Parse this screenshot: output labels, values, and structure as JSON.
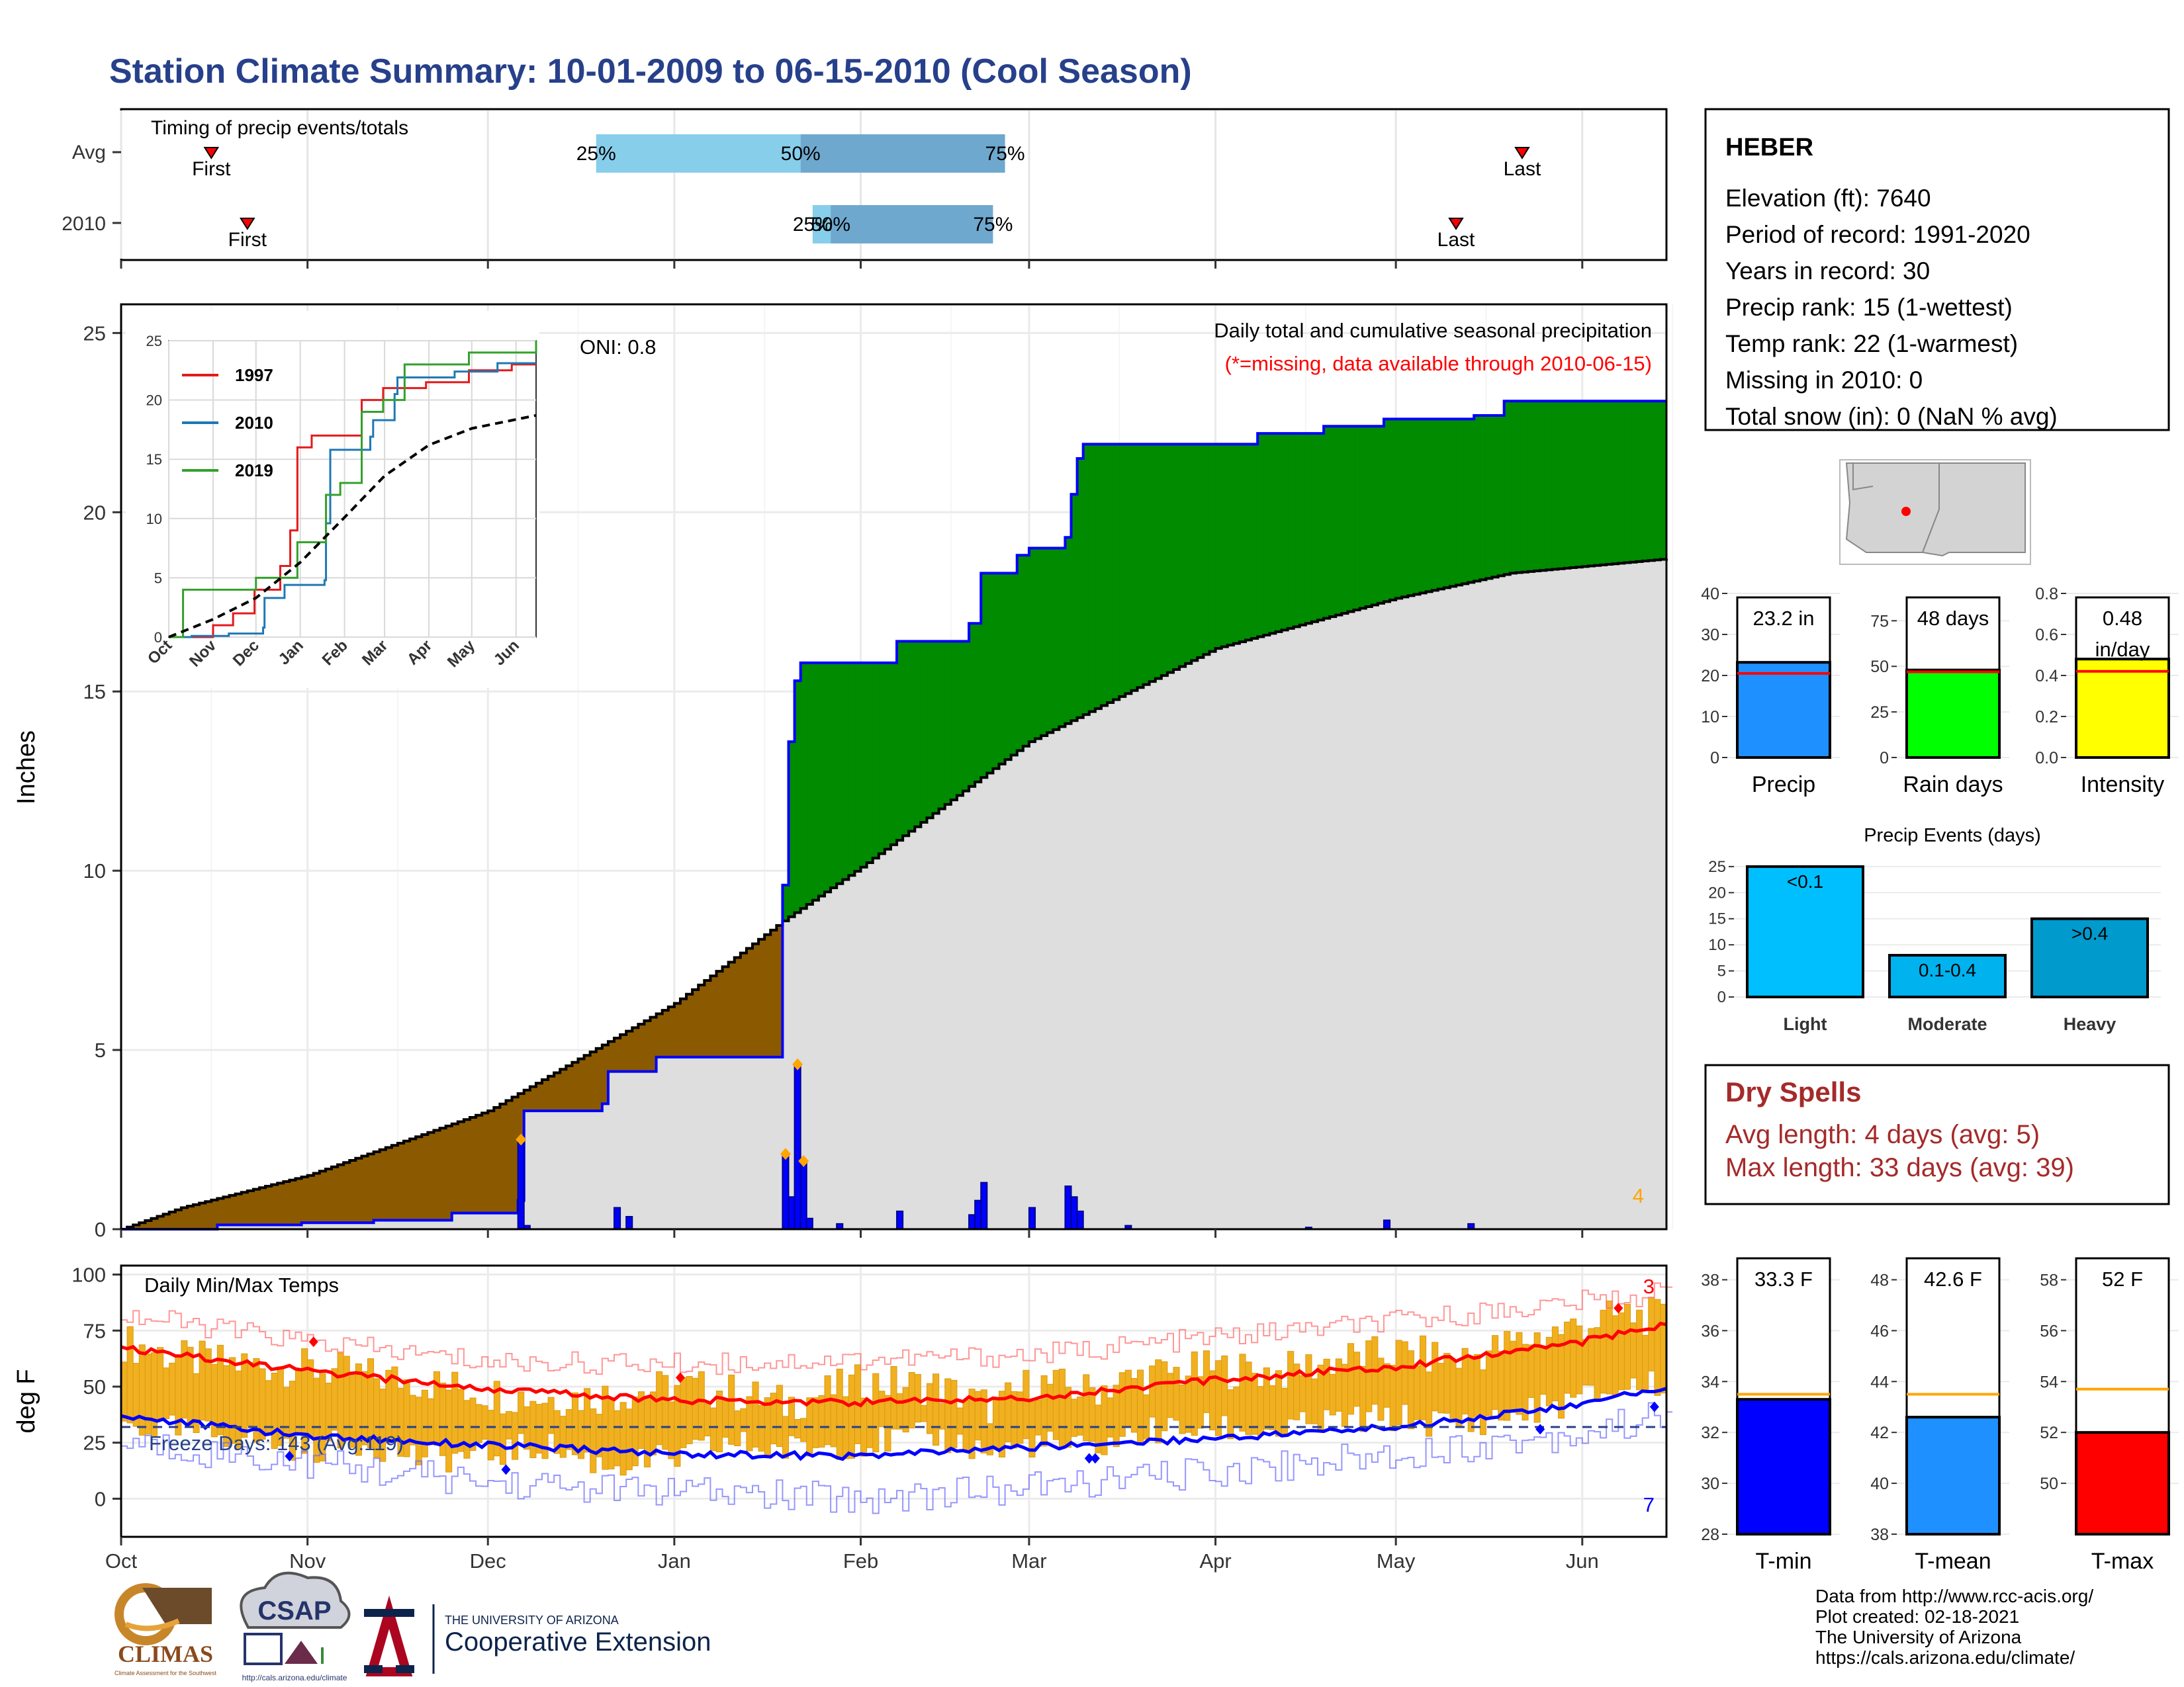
{
  "title": "Station Climate Summary: 10-01-2009 to 06-15-2010 (Cool Season)",
  "timing": {
    "label": "Timing of precip events/totals",
    "rows": [
      {
        "name": "Avg",
        "first_day": 15,
        "last_day": 233,
        "p25": 79,
        "p50": 113,
        "p75": 147,
        "first_label": "First",
        "last_label": "Last",
        "p25_label": "25%",
        "p50_label": "50%",
        "p75_label": "75%"
      },
      {
        "name": "2010",
        "first_day": 21,
        "last_day": 222,
        "p25": 115,
        "p50": 118,
        "p75": 145,
        "first_label": "First",
        "last_label": "Last",
        "p25_label": "25%",
        "p50_label": "50%",
        "p75_label": "75%"
      }
    ]
  },
  "chart_data": [
    {
      "type": "area",
      "name": "precipitation",
      "ylabel": "Inches",
      "ylim": [
        0,
        25
      ],
      "yticks": [
        0,
        5,
        10,
        15,
        20,
        25
      ],
      "xlim_days": [
        0,
        257
      ],
      "month_ticks": [
        {
          "label": "Oct",
          "day": 0
        },
        {
          "label": "Nov",
          "day": 31
        },
        {
          "label": "Dec",
          "day": 61
        },
        {
          "label": "Jan",
          "day": 92
        },
        {
          "label": "Feb",
          "day": 123
        },
        {
          "label": "Mar",
          "day": 151
        },
        {
          "label": "Apr",
          "day": 182
        },
        {
          "label": "May",
          "day": 212
        },
        {
          "label": "Jun",
          "day": 243
        }
      ],
      "legend_title": "Daily total and cumulative seasonal precipitation",
      "legend_note": "(*=missing, data available through 2010-06-15)",
      "oni": "ONI: 0.8",
      "corner_count": "4",
      "avg_cumulative": [
        [
          0,
          0
        ],
        [
          10,
          0.6
        ],
        [
          31,
          1.5
        ],
        [
          61,
          3.3
        ],
        [
          92,
          6.3
        ],
        [
          110,
          8.6
        ],
        [
          123,
          10.1
        ],
        [
          151,
          13.6
        ],
        [
          182,
          16.2
        ],
        [
          212,
          17.6
        ],
        [
          231,
          18.3
        ],
        [
          257,
          18.7
        ]
      ],
      "cumulative_2010": [
        [
          0,
          0
        ],
        [
          16,
          0.12
        ],
        [
          30,
          0.18
        ],
        [
          42,
          0.25
        ],
        [
          55,
          0.45
        ],
        [
          66,
          0.8
        ],
        [
          67,
          3.3
        ],
        [
          80,
          3.5
        ],
        [
          81,
          4.4
        ],
        [
          89,
          4.8
        ],
        [
          109,
          4.8
        ],
        [
          110,
          9.6
        ],
        [
          111,
          13.6
        ],
        [
          112,
          15.3
        ],
        [
          113,
          15.8
        ],
        [
          120,
          15.8
        ],
        [
          129,
          16.4
        ],
        [
          134,
          16.4
        ],
        [
          141,
          16.9
        ],
        [
          143,
          18.3
        ],
        [
          149,
          18.8
        ],
        [
          151,
          19.0
        ],
        [
          157,
          19.3
        ],
        [
          158,
          20.5
        ],
        [
          159,
          21.5
        ],
        [
          160,
          21.9
        ],
        [
          182,
          21.9
        ],
        [
          189,
          22.2
        ],
        [
          200,
          22.4
        ],
        [
          210,
          22.6
        ],
        [
          225,
          22.7
        ],
        [
          230,
          23.1
        ],
        [
          257,
          23.1
        ]
      ],
      "daily_2010": [
        [
          66,
          2.5
        ],
        [
          67,
          0.1
        ],
        [
          82,
          0.6
        ],
        [
          84,
          0.35
        ],
        [
          110,
          2.1
        ],
        [
          111,
          0.9
        ],
        [
          112,
          4.6
        ],
        [
          113,
          1.9
        ],
        [
          114,
          0.3
        ],
        [
          119,
          0.15
        ],
        [
          129,
          0.5
        ],
        [
          141,
          0.4
        ],
        [
          142,
          0.8
        ],
        [
          143,
          1.3
        ],
        [
          151,
          0.6
        ],
        [
          157,
          1.2
        ],
        [
          158,
          0.9
        ],
        [
          159,
          0.5
        ],
        [
          167,
          0.1
        ],
        [
          197,
          0.05
        ],
        [
          210,
          0.25
        ],
        [
          224,
          0.15
        ]
      ],
      "daily_extreme_markers": [
        [
          66,
          2.5
        ],
        [
          110,
          2.1
        ],
        [
          112,
          4.6
        ],
        [
          113,
          1.9
        ]
      ]
    },
    {
      "type": "line",
      "name": "inset-cumulative",
      "xticks": [
        "Oct",
        "Nov",
        "Dec",
        "Jan",
        "Feb",
        "Mar",
        "Apr",
        "May",
        "Jun"
      ],
      "ylim": [
        0,
        25
      ],
      "yticks": [
        0,
        5,
        10,
        15,
        20,
        25
      ],
      "series": [
        {
          "name": "1997",
          "color": "#e31a1c",
          "values": [
            [
              0,
              0
            ],
            [
              30,
              0
            ],
            [
              31,
              1
            ],
            [
              45,
              2
            ],
            [
              60,
              4
            ],
            [
              70,
              4
            ],
            [
              78,
              6
            ],
            [
              85,
              9
            ],
            [
              90,
              16
            ],
            [
              100,
              17
            ],
            [
              110,
              17
            ],
            [
              125,
              17
            ],
            [
              135,
              20
            ],
            [
              150,
              21
            ],
            [
              180,
              21.5
            ],
            [
              210,
              22.5
            ],
            [
              240,
              23
            ],
            [
              257,
              23
            ]
          ]
        },
        {
          "name": "2010",
          "color": "#1f78b4",
          "values": [
            [
              0,
              0
            ],
            [
              16,
              0.1
            ],
            [
              42,
              0.3
            ],
            [
              66,
              0.8
            ],
            [
              67,
              3.3
            ],
            [
              81,
              4.4
            ],
            [
              109,
              4.8
            ],
            [
              110,
              9.6
            ],
            [
              113,
              15.8
            ],
            [
              141,
              16.9
            ],
            [
              143,
              18.3
            ],
            [
              158,
              20.5
            ],
            [
              160,
              21.9
            ],
            [
              200,
              22.4
            ],
            [
              230,
              23.1
            ],
            [
              257,
              23.1
            ]
          ]
        },
        {
          "name": "2019",
          "color": "#33a02c",
          "values": [
            [
              0,
              0
            ],
            [
              10,
              4
            ],
            [
              31,
              4
            ],
            [
              61,
              5
            ],
            [
              90,
              8
            ],
            [
              110,
              12
            ],
            [
              120,
              13
            ],
            [
              135,
              19
            ],
            [
              150,
              20
            ],
            [
              165,
              23
            ],
            [
              182,
              23
            ],
            [
              210,
              24
            ],
            [
              240,
              24
            ],
            [
              257,
              25
            ]
          ]
        },
        {
          "name": "",
          "color": "#000000",
          "dashed": true,
          "values": [
            [
              0,
              0
            ],
            [
              31,
              1.5
            ],
            [
              61,
              3.3
            ],
            [
              92,
              6.3
            ],
            [
              123,
              10.1
            ],
            [
              151,
              13.6
            ],
            [
              182,
              16.2
            ],
            [
              212,
              17.6
            ],
            [
              257,
              18.7
            ]
          ]
        }
      ]
    },
    {
      "type": "line",
      "name": "temperature",
      "ylabel": "deg F",
      "title": "Daily Min/Max Temps",
      "ylim": [
        -15,
        100
      ],
      "yticks": [
        0,
        25,
        50,
        75,
        100
      ],
      "freeze_label": "Freeze Days: 143 (Avg:119)",
      "freeze_line": 32,
      "count_max": "3",
      "count_min": "7",
      "avg_max": [
        [
          0,
          67
        ],
        [
          31,
          57
        ],
        [
          61,
          49
        ],
        [
          92,
          44
        ],
        [
          123,
          43
        ],
        [
          151,
          45
        ],
        [
          182,
          53
        ],
        [
          212,
          59
        ],
        [
          243,
          70
        ],
        [
          257,
          78
        ]
      ],
      "avg_min": [
        [
          0,
          37
        ],
        [
          31,
          28
        ],
        [
          61,
          24
        ],
        [
          92,
          20
        ],
        [
          123,
          19
        ],
        [
          151,
          23
        ],
        [
          182,
          27
        ],
        [
          212,
          32
        ],
        [
          243,
          42
        ],
        [
          257,
          50
        ]
      ],
      "record_max_line": [
        [
          0,
          82
        ],
        [
          31,
          70
        ],
        [
          61,
          61
        ],
        [
          92,
          60
        ],
        [
          123,
          62
        ],
        [
          151,
          64
        ],
        [
          182,
          72
        ],
        [
          212,
          79
        ],
        [
          243,
          88
        ],
        [
          257,
          92
        ]
      ],
      "record_min_line": [
        [
          0,
          25
        ],
        [
          31,
          16
        ],
        [
          61,
          7
        ],
        [
          92,
          3
        ],
        [
          123,
          0
        ],
        [
          151,
          5
        ],
        [
          182,
          12
        ],
        [
          212,
          20
        ],
        [
          243,
          29
        ],
        [
          257,
          38
        ]
      ],
      "daily_max_2010": [
        [
          0,
          70
        ],
        [
          10,
          62
        ],
        [
          20,
          60
        ],
        [
          31,
          58
        ],
        [
          40,
          55
        ],
        [
          50,
          52
        ],
        [
          61,
          47
        ],
        [
          70,
          45
        ],
        [
          80,
          46
        ],
        [
          92,
          50
        ],
        [
          100,
          48
        ],
        [
          110,
          42
        ],
        [
          123,
          52
        ],
        [
          135,
          50
        ],
        [
          145,
          40
        ],
        [
          151,
          52
        ],
        [
          160,
          48
        ],
        [
          170,
          55
        ],
        [
          182,
          58
        ],
        [
          192,
          56
        ],
        [
          202,
          62
        ],
        [
          212,
          65
        ],
        [
          222,
          62
        ],
        [
          232,
          70
        ],
        [
          243,
          78
        ],
        [
          250,
          82
        ],
        [
          257,
          80
        ]
      ],
      "daily_min_2010": [
        [
          0,
          33
        ],
        [
          10,
          30
        ],
        [
          20,
          28
        ],
        [
          31,
          22
        ],
        [
          40,
          26
        ],
        [
          50,
          18
        ],
        [
          61,
          20
        ],
        [
          70,
          24
        ],
        [
          80,
          15
        ],
        [
          92,
          18
        ],
        [
          100,
          25
        ],
        [
          110,
          22
        ],
        [
          123,
          25
        ],
        [
          135,
          28
        ],
        [
          145,
          20
        ],
        [
          151,
          25
        ],
        [
          160,
          22
        ],
        [
          170,
          30
        ],
        [
          182,
          32
        ],
        [
          192,
          30
        ],
        [
          202,
          35
        ],
        [
          212,
          36
        ],
        [
          222,
          33
        ],
        [
          232,
          38
        ],
        [
          243,
          45
        ],
        [
          250,
          50
        ],
        [
          257,
          52
        ]
      ],
      "record_high_markers": [
        [
          32,
          70
        ],
        [
          93,
          54
        ],
        [
          249,
          85
        ]
      ],
      "record_low_markers": [
        [
          28,
          19
        ],
        [
          64,
          13
        ],
        [
          161,
          18
        ],
        [
          162,
          18
        ],
        [
          236,
          31
        ],
        [
          255,
          41
        ]
      ]
    },
    {
      "type": "bar",
      "name": "precip-total",
      "categories": [
        "Precip"
      ],
      "values": [
        23.2
      ],
      "avg": 20.5,
      "ylim": [
        0,
        40
      ],
      "yticks": [
        0,
        10,
        20,
        30,
        40
      ],
      "box_label": "23.2 in",
      "color": "#1e90ff"
    },
    {
      "type": "bar",
      "name": "rain-days",
      "categories": [
        "Rain days"
      ],
      "values": [
        48
      ],
      "avg": 47,
      "ylim": [
        0,
        90
      ],
      "yticks": [
        0,
        25,
        50,
        75
      ],
      "box_label": "48 days",
      "color": "#00ff00"
    },
    {
      "type": "bar",
      "name": "intensity",
      "categories": [
        "Intensity"
      ],
      "values": [
        0.48
      ],
      "avg": 0.42,
      "ylim": [
        0,
        0.8
      ],
      "yticks": [
        "0.0",
        "0.2",
        "0.4",
        "0.6",
        "0.8"
      ],
      "box_label": "0.48",
      "box_label2": "in/day",
      "color": "#ffff00"
    },
    {
      "type": "bar",
      "name": "precip-events",
      "title": "Precip Events (days)",
      "categories": [
        "Light",
        "Moderate",
        "Heavy"
      ],
      "values": [
        25,
        8,
        15
      ],
      "bar_labels": [
        "<0.1",
        "0.1-0.4",
        ">0.4"
      ],
      "colors": [
        "#00bfff",
        "#00b2ee",
        "#009acd"
      ],
      "ylim": [
        0,
        26
      ],
      "yticks": [
        0,
        5,
        10,
        15,
        20,
        25
      ]
    },
    {
      "type": "bar",
      "name": "t-min",
      "categories": [
        "T-min"
      ],
      "values": [
        33.3
      ],
      "avg": 33.5,
      "ylim": [
        28,
        39
      ],
      "yticks": [
        28,
        30,
        32,
        34,
        36,
        38
      ],
      "box_label": "33.3 F",
      "color": "#0000ff"
    },
    {
      "type": "bar",
      "name": "t-mean",
      "categories": [
        "T-mean"
      ],
      "values": [
        42.6
      ],
      "avg": 43.5,
      "ylim": [
        38,
        49
      ],
      "yticks": [
        38,
        40,
        42,
        44,
        46,
        48
      ],
      "box_label": "42.6 F",
      "color": "#1e90ff"
    },
    {
      "type": "bar",
      "name": "t-max",
      "categories": [
        "T-max"
      ],
      "values": [
        52
      ],
      "avg": 53.7,
      "ylim": [
        48,
        59
      ],
      "yticks": [
        50,
        52,
        54,
        56,
        58
      ],
      "box_label": "52 F",
      "color": "#ff0000"
    }
  ],
  "station": {
    "name": "HEBER",
    "lines": [
      "Elevation (ft): 7640",
      "Period of record: 1991-2020",
      "Years in record: 30",
      "Precip rank: 15 (1-wettest)",
      "Temp rank: 22 (1-warmest)",
      "Missing in 2010: 0",
      "Total snow (in): 0 (NaN % avg)"
    ]
  },
  "dry_spells": {
    "title": "Dry Spells",
    "avg_line": "Avg length: 4 days (avg: 5)",
    "max_line": "Max length: 33 days (avg: 39)"
  },
  "logos": {
    "climas": "CLIMAS",
    "climas_sub": "Climate Assessment for the Southwest",
    "csap": "CSAP",
    "csap_url": "http://cals.arizona.edu/climate",
    "ua_small": "THE UNIVERSITY OF ARIZONA",
    "coop": "Cooperative Extension"
  },
  "credits": [
    "Data from http://www.rcc-acis.org/",
    "Plot created: 02-18-2021",
    "The University of Arizona",
    "https://cals.arizona.edu/climate/"
  ],
  "colors": {
    "title": "#27408b",
    "dry_spells": "#a52a2a",
    "precip_deficit": "#8b5a00",
    "precip_surplus": "#008b00",
    "avg_fill": "#dedede",
    "daily_bar": "#0000ff",
    "temp_bar": "#f0b020",
    "timing_light": "#87ceeb",
    "timing_dark": "#6fa8cf"
  }
}
